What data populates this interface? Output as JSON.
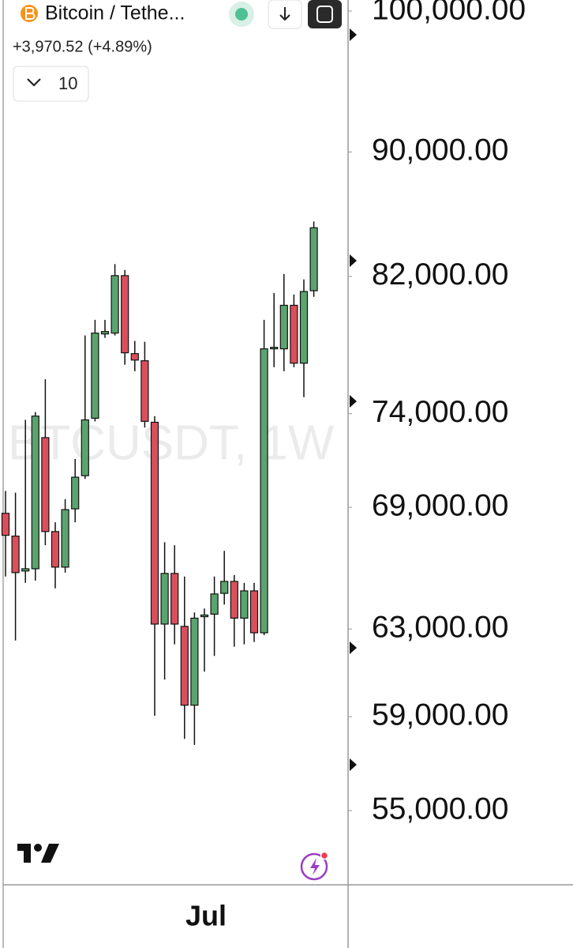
{
  "chart_data": {
    "type": "candlestick",
    "title": "Bitcoin / Tethe...",
    "subtitle": "+3,970.52 (+4.89%)",
    "watermark": "BTCUSDT, 1W",
    "categories": [
      null,
      null,
      null,
      null,
      null,
      null,
      null,
      null,
      null,
      null,
      null,
      null,
      null,
      null,
      null,
      null,
      null,
      null,
      null,
      null,
      "Jul",
      null,
      null,
      null,
      null,
      null,
      null,
      null,
      null,
      null,
      null,
      null
    ],
    "open": [
      68690,
      67530,
      65790,
      65900,
      72690,
      67760,
      65980,
      68920,
      70650,
      73750,
      78550,
      78600,
      82050,
      77400,
      76990,
      73530,
      63230,
      65670,
      63120,
      59510,
      63580,
      63700,
      64700,
      65280,
      63510,
      64820,
      62820,
      77680,
      77680,
      80250,
      76850,
      81130
    ],
    "high": [
      69850,
      69760,
      73660,
      74090,
      75930,
      68230,
      69420,
      71540,
      78460,
      79380,
      79380,
      82760,
      82400,
      78140,
      78090,
      73870,
      67220,
      67070,
      65520,
      63780,
      63970,
      65520,
      66790,
      65590,
      65210,
      65210,
      79380,
      80990,
      82150,
      80900,
      81820,
      85440
    ],
    "low": [
      65520,
      62460,
      65210,
      65320,
      67070,
      64940,
      65710,
      68230,
      70480,
      73580,
      78320,
      78460,
      76760,
      76390,
      73240,
      59040,
      60660,
      62280,
      58030,
      57770,
      61020,
      61740,
      64160,
      62170,
      62280,
      62390,
      62710,
      76620,
      76390,
      76620,
      74920,
      80760
    ],
    "close": [
      67570,
      65710,
      65900,
      73870,
      67760,
      65980,
      68880,
      70570,
      73660,
      78600,
      78690,
      82050,
      77450,
      77030,
      73580,
      63230,
      65670,
      63230,
      59510,
      63510,
      63660,
      64670,
      65280,
      63510,
      64820,
      62820,
      77680,
      77770,
      80250,
      76850,
      81080,
      85040
    ],
    "up_color": "#5ba46f",
    "down_color": "#d9505c",
    "log_scale": true,
    "ylim": [
      52030,
      100830
    ],
    "yticks": [
      {
        "value": 100000,
        "label": "100,000.00"
      },
      {
        "value": 90000,
        "label": "90,000.00"
      },
      {
        "value": 82000,
        "label": "82,000.00"
      },
      {
        "value": 74000,
        "label": "74,000.00"
      },
      {
        "value": 69000,
        "label": "69,000.00"
      },
      {
        "value": 63000,
        "label": "63,000.00"
      },
      {
        "value": 59000,
        "label": "59,000.00"
      },
      {
        "value": 55000,
        "label": "55,000.00"
      }
    ]
  },
  "toolbar": {
    "dropdown_label": "10"
  }
}
